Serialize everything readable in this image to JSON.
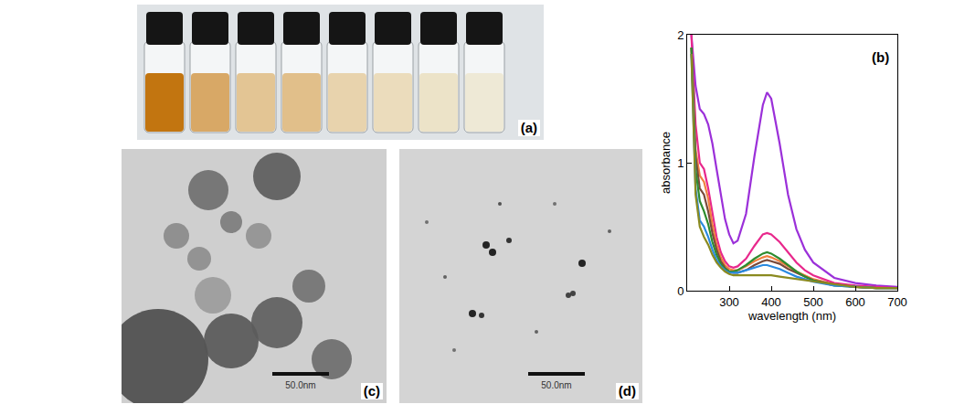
{
  "chart_data": {
    "type": "line",
    "annotations": [
      "(b)"
    ],
    "x_label": "wavelength (nm)",
    "y_label": "absorbance",
    "x": [
      210,
      220,
      230,
      240,
      250,
      260,
      270,
      280,
      290,
      300,
      310,
      320,
      340,
      360,
      380,
      390,
      400,
      420,
      440,
      460,
      480,
      500,
      550,
      600,
      650,
      700
    ],
    "series": [
      {
        "color": "#9b30d9",
        "values": [
          2.0,
          1.6,
          1.42,
          1.38,
          1.3,
          1.15,
          0.95,
          0.75,
          0.56,
          0.44,
          0.37,
          0.39,
          0.6,
          1.05,
          1.45,
          1.55,
          1.5,
          1.15,
          0.75,
          0.48,
          0.32,
          0.22,
          0.1,
          0.06,
          0.04,
          0.03
        ]
      },
      {
        "color": "#e8288c",
        "values": [
          2.0,
          1.3,
          1.0,
          0.95,
          0.8,
          0.6,
          0.42,
          0.3,
          0.23,
          0.19,
          0.18,
          0.19,
          0.25,
          0.35,
          0.44,
          0.45,
          0.44,
          0.38,
          0.3,
          0.22,
          0.16,
          0.12,
          0.06,
          0.04,
          0.03,
          0.02
        ]
      },
      {
        "color": "#f08040",
        "values": [
          1.9,
          1.1,
          0.9,
          0.85,
          0.72,
          0.52,
          0.36,
          0.26,
          0.2,
          0.17,
          0.16,
          0.16,
          0.19,
          0.23,
          0.26,
          0.27,
          0.26,
          0.23,
          0.19,
          0.15,
          0.12,
          0.09,
          0.05,
          0.03,
          0.02,
          0.02
        ]
      },
      {
        "color": "#7a4a3a",
        "values": [
          1.9,
          1.05,
          0.8,
          0.75,
          0.62,
          0.45,
          0.32,
          0.23,
          0.18,
          0.15,
          0.14,
          0.14,
          0.16,
          0.2,
          0.23,
          0.24,
          0.23,
          0.21,
          0.17,
          0.14,
          0.11,
          0.08,
          0.05,
          0.03,
          0.02,
          0.02
        ]
      },
      {
        "color": "#2e8b2e",
        "values": [
          1.9,
          0.95,
          0.7,
          0.62,
          0.52,
          0.38,
          0.28,
          0.21,
          0.17,
          0.15,
          0.15,
          0.16,
          0.2,
          0.25,
          0.29,
          0.3,
          0.29,
          0.25,
          0.2,
          0.15,
          0.11,
          0.08,
          0.04,
          0.03,
          0.02,
          0.02
        ]
      },
      {
        "color": "#2a8ae0",
        "values": [
          1.85,
          0.8,
          0.55,
          0.5,
          0.42,
          0.32,
          0.24,
          0.19,
          0.16,
          0.14,
          0.14,
          0.14,
          0.16,
          0.18,
          0.2,
          0.2,
          0.19,
          0.17,
          0.14,
          0.11,
          0.09,
          0.07,
          0.04,
          0.03,
          0.02,
          0.02
        ]
      },
      {
        "color": "#8a8a20",
        "values": [
          1.85,
          0.75,
          0.5,
          0.42,
          0.36,
          0.28,
          0.22,
          0.18,
          0.15,
          0.13,
          0.12,
          0.12,
          0.12,
          0.12,
          0.12,
          0.12,
          0.12,
          0.11,
          0.1,
          0.09,
          0.08,
          0.07,
          0.05,
          0.03,
          0.02,
          0.02
        ]
      }
    ],
    "xlim": [
      200,
      700
    ],
    "xticks": [
      300,
      400,
      500,
      600,
      700
    ],
    "ylim": [
      0,
      2
    ],
    "yticks": [
      0,
      1,
      2
    ],
    "grid": false
  },
  "images": [
    {
      "label": "(a)"
    },
    {
      "label": "(c)",
      "scale_bar": "50.0nm"
    },
    {
      "label": "(d)",
      "scale_bar": "50.0nm"
    }
  ]
}
